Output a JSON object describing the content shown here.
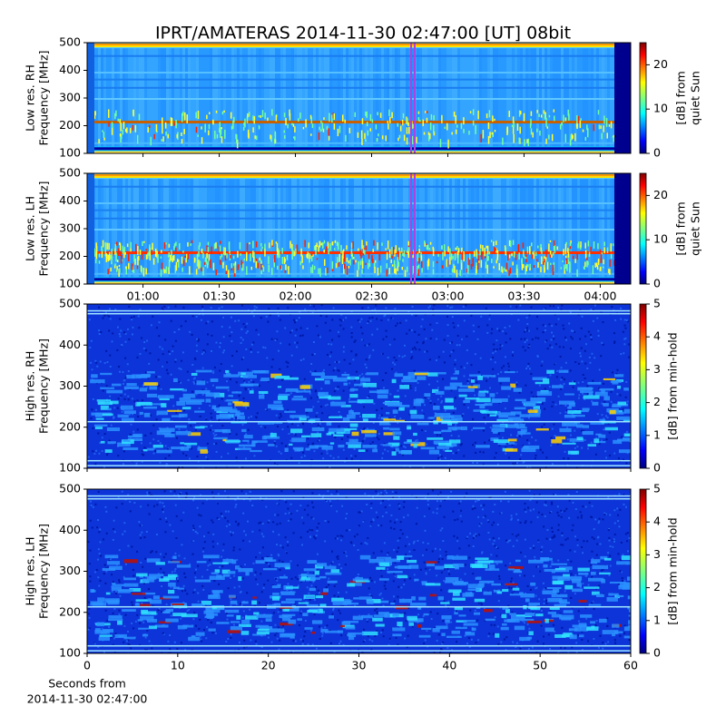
{
  "chart_data": [
    {
      "type": "heatmap",
      "title": "IPRT/AMATERAS 2014-11-30 02:47:00 [UT]   08bit",
      "ylabel": [
        "Low res. RH",
        "Frequency [MHz]"
      ],
      "ylim": [
        100,
        500
      ],
      "yticks": [
        100,
        200,
        300,
        400,
        500
      ],
      "colorbar": {
        "label": [
          "[dB] from",
          "quiet Sun"
        ],
        "lim": [
          0,
          25
        ],
        "ticks": [
          0,
          10,
          20
        ],
        "colormap": "jet"
      }
    },
    {
      "type": "heatmap",
      "ylabel": [
        "Low res. LH",
        "Frequency [MHz]"
      ],
      "ylim": [
        100,
        500
      ],
      "yticks": [
        100,
        200,
        300,
        400,
        500
      ],
      "xlim": [
        38,
        252
      ],
      "xticks": [
        {
          "value": 60,
          "label": "01:00"
        },
        {
          "value": 90,
          "label": "01:30"
        },
        {
          "value": 120,
          "label": "02:00"
        },
        {
          "value": 150,
          "label": "02:30"
        },
        {
          "value": 180,
          "label": "03:00"
        },
        {
          "value": 210,
          "label": "03:30"
        },
        {
          "value": 240,
          "label": "04:00"
        }
      ],
      "colorbar": {
        "label": [
          "[dB] from",
          "quiet Sun"
        ],
        "lim": [
          0,
          25
        ],
        "ticks": [
          0,
          10,
          20
        ],
        "colormap": "jet"
      }
    },
    {
      "type": "heatmap",
      "ylabel": [
        "High res. RH",
        "Frequency [MHz]"
      ],
      "ylim": [
        100,
        500
      ],
      "yticks": [
        100,
        200,
        300,
        400,
        500
      ],
      "colorbar": {
        "label": [
          "[dB] from min-hold"
        ],
        "lim": [
          0,
          5
        ],
        "ticks": [
          0,
          1,
          2,
          3,
          4,
          5
        ],
        "colormap": "jet"
      }
    },
    {
      "type": "heatmap",
      "ylabel": [
        "High res. LH",
        "Frequency [MHz]"
      ],
      "ylim": [
        100,
        500
      ],
      "yticks": [
        100,
        200,
        300,
        400,
        500
      ],
      "xlim": [
        0,
        60
      ],
      "xticks": [
        0,
        10,
        20,
        30,
        40,
        50,
        60
      ],
      "xlabel": [
        "Seconds from",
        "2014-11-30 02:47:00"
      ],
      "colorbar": {
        "label": [
          "[dB] from min-hold"
        ],
        "lim": [
          0,
          5
        ],
        "ticks": [
          0,
          1,
          2,
          3,
          4,
          5
        ],
        "colormap": "jet"
      }
    }
  ]
}
